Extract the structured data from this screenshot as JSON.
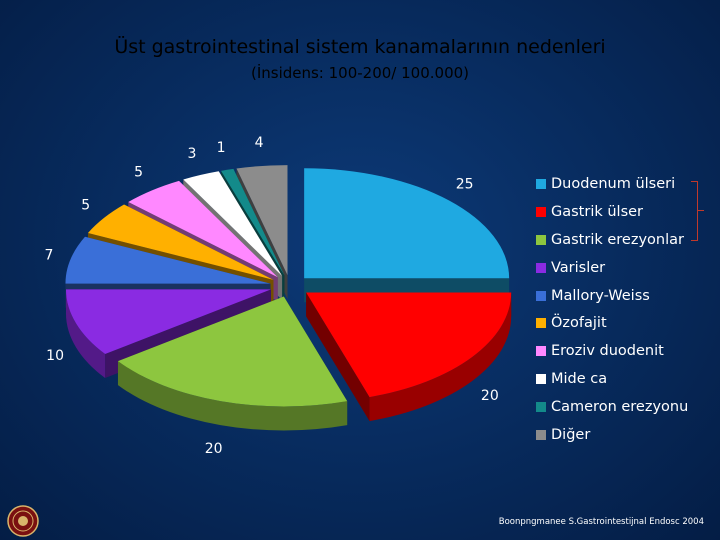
{
  "title": "Üst gastrointestinal sistem kanamalarının  nedenleri",
  "subtitle": "(İnsidens: 100-200/ 100.000)",
  "source": "Boonpngmanee S.Gastrointestijnal Endosc 2004",
  "chart_data": {
    "type": "pie",
    "title": "Üst gastrointestinal sistem kanamalarının  nedenleri",
    "subtitle": "(İnsidens: 100-200/ 100.000)",
    "style": "3d-exploded",
    "legend_position": "right",
    "slices": [
      {
        "label": "Duodenum ülseri",
        "value": 25,
        "color": "#1fa9e1"
      },
      {
        "label": "Gastrik ülser",
        "value": 20,
        "color": "#ff0000"
      },
      {
        "label": "Gastrik erezyonlar",
        "value": 20,
        "color": "#8dc63f"
      },
      {
        "label": "Varisler",
        "value": 10,
        "color": "#8a2be2"
      },
      {
        "label": "Mallory-Weiss",
        "value": 7,
        "color": "#3a6fd8"
      },
      {
        "label": "Özofajit",
        "value": 5,
        "color": "#ffb000"
      },
      {
        "label": "Eroziv duodenit",
        "value": 5,
        "color": "#ff88ff"
      },
      {
        "label": "Mide ca",
        "value": 3,
        "color": "#ffffff"
      },
      {
        "label": "Cameron erezyonu",
        "value": 1,
        "color": "#138a8a"
      },
      {
        "label": "Diğer",
        "value": 4,
        "color": "#8c8c8c"
      }
    ]
  }
}
